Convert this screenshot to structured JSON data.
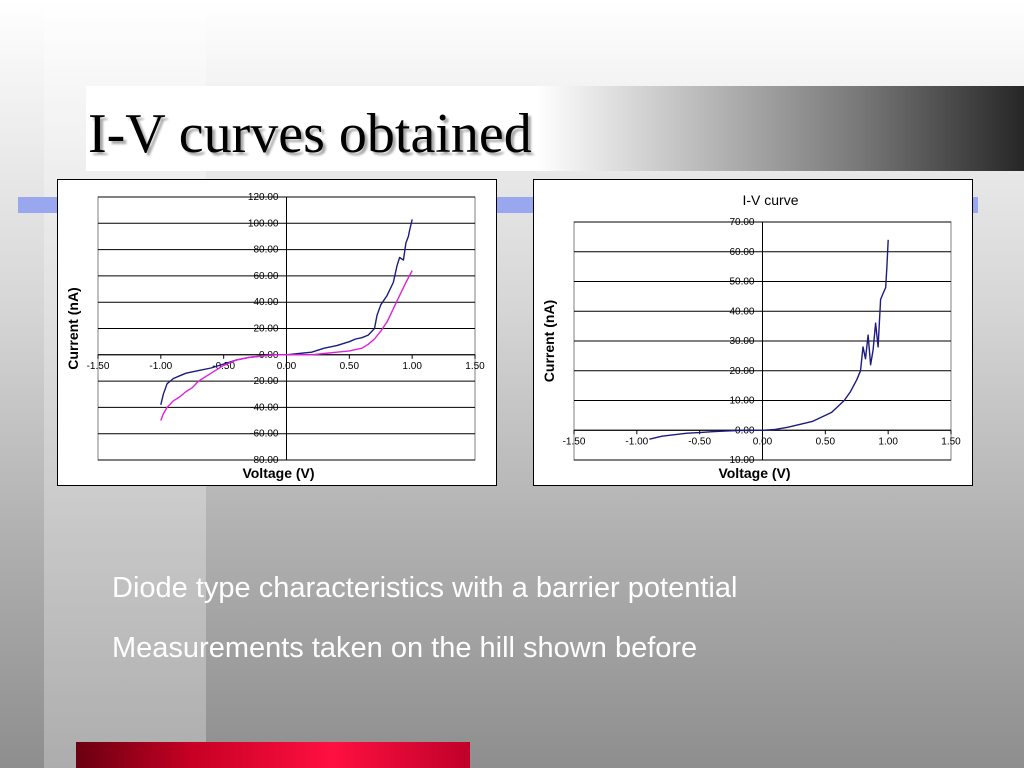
{
  "slide": {
    "title": "I-V curves obtained",
    "bullets": [
      "Diode type characteristics with a barrier potential",
      "Measurements taken on the hill shown before"
    ],
    "colors": {
      "title_bar_dark": "#262626",
      "accent_blue_bar": "#99a8ee",
      "accent_red_bar": "#ff1040",
      "text_white": "#ffffff"
    }
  },
  "chart_data": [
    {
      "type": "line",
      "title": "",
      "xlabel": "Voltage (V)",
      "ylabel": "Current (nA)",
      "xlim": [
        -1.5,
        1.5
      ],
      "ylim": [
        -80,
        120
      ],
      "xticks": [
        "-1.50",
        "-1.00",
        "-0.50",
        "0.00",
        "0.50",
        "1.00",
        "1.50"
      ],
      "yticks": [
        "120.00",
        "100.00",
        "80.00",
        "60.00",
        "40.00",
        "20.00",
        "0.00",
        "-20.00",
        "-40.00",
        "-60.00",
        "-80.00"
      ],
      "grid": "horizontal",
      "legend": "none",
      "series": [
        {
          "color": "#1c1c80",
          "x": [
            -1.0,
            -0.98,
            -0.95,
            -0.9,
            -0.85,
            -0.8,
            -0.7,
            -0.6,
            -0.5,
            -0.4,
            -0.3,
            -0.2,
            -0.1,
            0.0,
            0.1,
            0.2,
            0.3,
            0.4,
            0.5,
            0.55,
            0.6,
            0.65,
            0.7,
            0.72,
            0.75,
            0.8,
            0.85,
            0.88,
            0.9,
            0.93,
            0.95,
            0.97,
            0.98,
            1.0
          ],
          "y": [
            -38,
            -30,
            -22,
            -18,
            -16,
            -14,
            -12,
            -10,
            -7,
            -4,
            -2,
            -1,
            0,
            0,
            1,
            2,
            5,
            7,
            10,
            12,
            13,
            15,
            20,
            30,
            38,
            45,
            55,
            68,
            74,
            72,
            85,
            90,
            95,
            103
          ]
        },
        {
          "color": "#e020e0",
          "x": [
            -1.0,
            -0.98,
            -0.95,
            -0.9,
            -0.85,
            -0.8,
            -0.75,
            -0.7,
            -0.6,
            -0.5,
            -0.4,
            -0.3,
            -0.2,
            -0.1,
            0.0,
            0.1,
            0.2,
            0.3,
            0.4,
            0.5,
            0.6,
            0.65,
            0.7,
            0.75,
            0.8,
            0.85,
            0.9,
            0.95,
            1.0
          ],
          "y": [
            -50,
            -45,
            -40,
            -35,
            -32,
            -28,
            -25,
            -20,
            -14,
            -8,
            -4,
            -2,
            -1,
            0,
            0,
            0,
            0,
            1,
            2,
            3,
            5,
            8,
            12,
            18,
            25,
            35,
            45,
            55,
            64
          ]
        }
      ]
    },
    {
      "type": "line",
      "title": "I-V curve",
      "xlabel": "Voltage (V)",
      "ylabel": "Current (nA)",
      "xlim": [
        -1.5,
        1.5
      ],
      "ylim": [
        -10,
        70
      ],
      "xticks": [
        "-1.50",
        "-1.00",
        "-0.50",
        "0.00",
        "0.50",
        "1.00",
        "1.50"
      ],
      "yticks": [
        "70.00",
        "60.00",
        "50.00",
        "40.00",
        "30.00",
        "20.00",
        "10.00",
        "0.00",
        "-10.00"
      ],
      "grid": "horizontal",
      "legend": "none",
      "series": [
        {
          "color": "#1c1c80",
          "x": [
            -0.9,
            -0.85,
            -0.8,
            -0.7,
            -0.6,
            -0.5,
            -0.4,
            -0.3,
            -0.2,
            -0.1,
            0.0,
            0.1,
            0.2,
            0.3,
            0.4,
            0.5,
            0.55,
            0.6,
            0.65,
            0.7,
            0.75,
            0.78,
            0.8,
            0.82,
            0.84,
            0.86,
            0.88,
            0.9,
            0.92,
            0.94,
            0.96,
            0.98,
            0.99,
            1.0
          ],
          "y": [
            -3,
            -2.5,
            -2,
            -1.5,
            -1,
            -0.8,
            -0.5,
            -0.3,
            -0.1,
            0,
            0,
            0.3,
            1,
            2,
            3,
            5,
            6,
            8,
            10,
            13,
            17,
            20,
            28,
            24,
            32,
            22,
            27,
            36,
            28,
            44,
            46,
            48,
            55,
            64
          ]
        }
      ]
    }
  ]
}
